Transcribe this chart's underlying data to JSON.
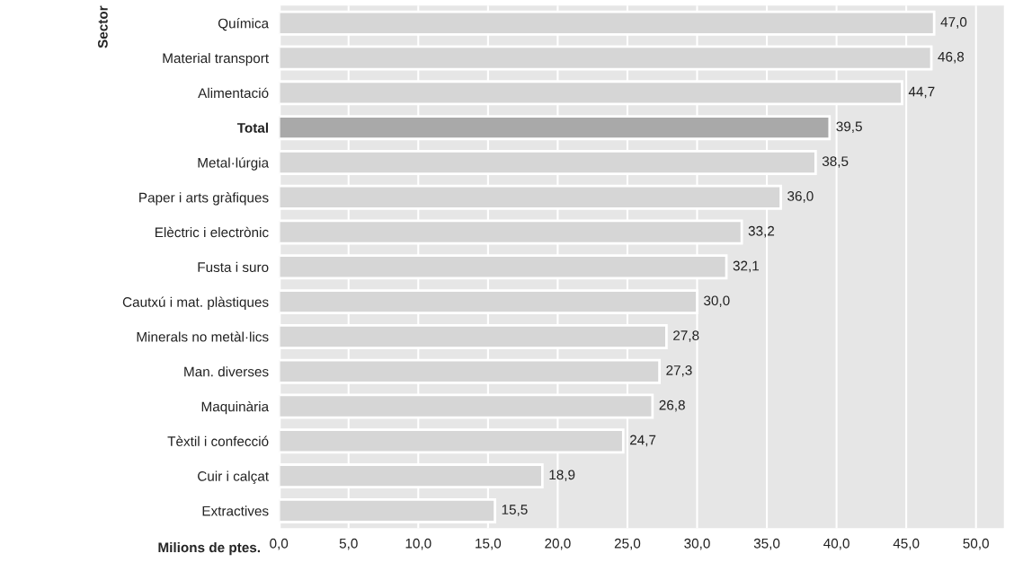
{
  "chart_data": {
    "type": "bar",
    "orientation": "horizontal",
    "ylabel": "Sector",
    "xlabel": "Milions de ptes.",
    "categories": [
      "Química",
      "Material transport",
      "Alimentació",
      "Total",
      "Metal·lúrgia",
      "Paper i arts gràfiques",
      "Elèctric i electrònic",
      "Fusta i suro",
      "Cautxú i mat. plàstiques",
      "Minerals no metàl·lics",
      "Man. diverses",
      "Maquinària",
      "Tèxtil i confecció",
      "Cuir i calçat",
      "Extractives"
    ],
    "values": [
      47.0,
      46.8,
      44.7,
      39.5,
      38.5,
      36.0,
      33.2,
      32.1,
      30.0,
      27.8,
      27.3,
      26.8,
      24.7,
      18.9,
      15.5
    ],
    "value_labels": [
      "47,0",
      "46,8",
      "44,7",
      "39,5",
      "38,5",
      "36,0",
      "33,2",
      "32,1",
      "30,0",
      "27,8",
      "27,3",
      "26,8",
      "24,7",
      "18,9",
      "15,5"
    ],
    "colors": [
      "#d6d6d6",
      "#d6d6d6",
      "#d6d6d6",
      "#a9a9a9",
      "#d6d6d6",
      "#d6d6d6",
      "#d6d6d6",
      "#d6d6d6",
      "#d6d6d6",
      "#d6d6d6",
      "#d6d6d6",
      "#d6d6d6",
      "#d6d6d6",
      "#d6d6d6",
      "#d6d6d6"
    ],
    "xlim": [
      0,
      52
    ],
    "xticks": [
      {
        "value": 0,
        "label": "0,0"
      },
      {
        "value": 5,
        "label": "5,0"
      },
      {
        "value": 10,
        "label": "10,0"
      },
      {
        "value": 15,
        "label": "15,0"
      },
      {
        "value": 20,
        "label": "20,0"
      },
      {
        "value": 25,
        "label": "25,0"
      },
      {
        "value": 30,
        "label": "30,0"
      },
      {
        "value": 35,
        "label": "35,0"
      },
      {
        "value": 40,
        "label": "40,0"
      },
      {
        "value": 45,
        "label": "45,0"
      },
      {
        "value": 50,
        "label": "50,0"
      }
    ],
    "grid": "x",
    "legend": false
  }
}
